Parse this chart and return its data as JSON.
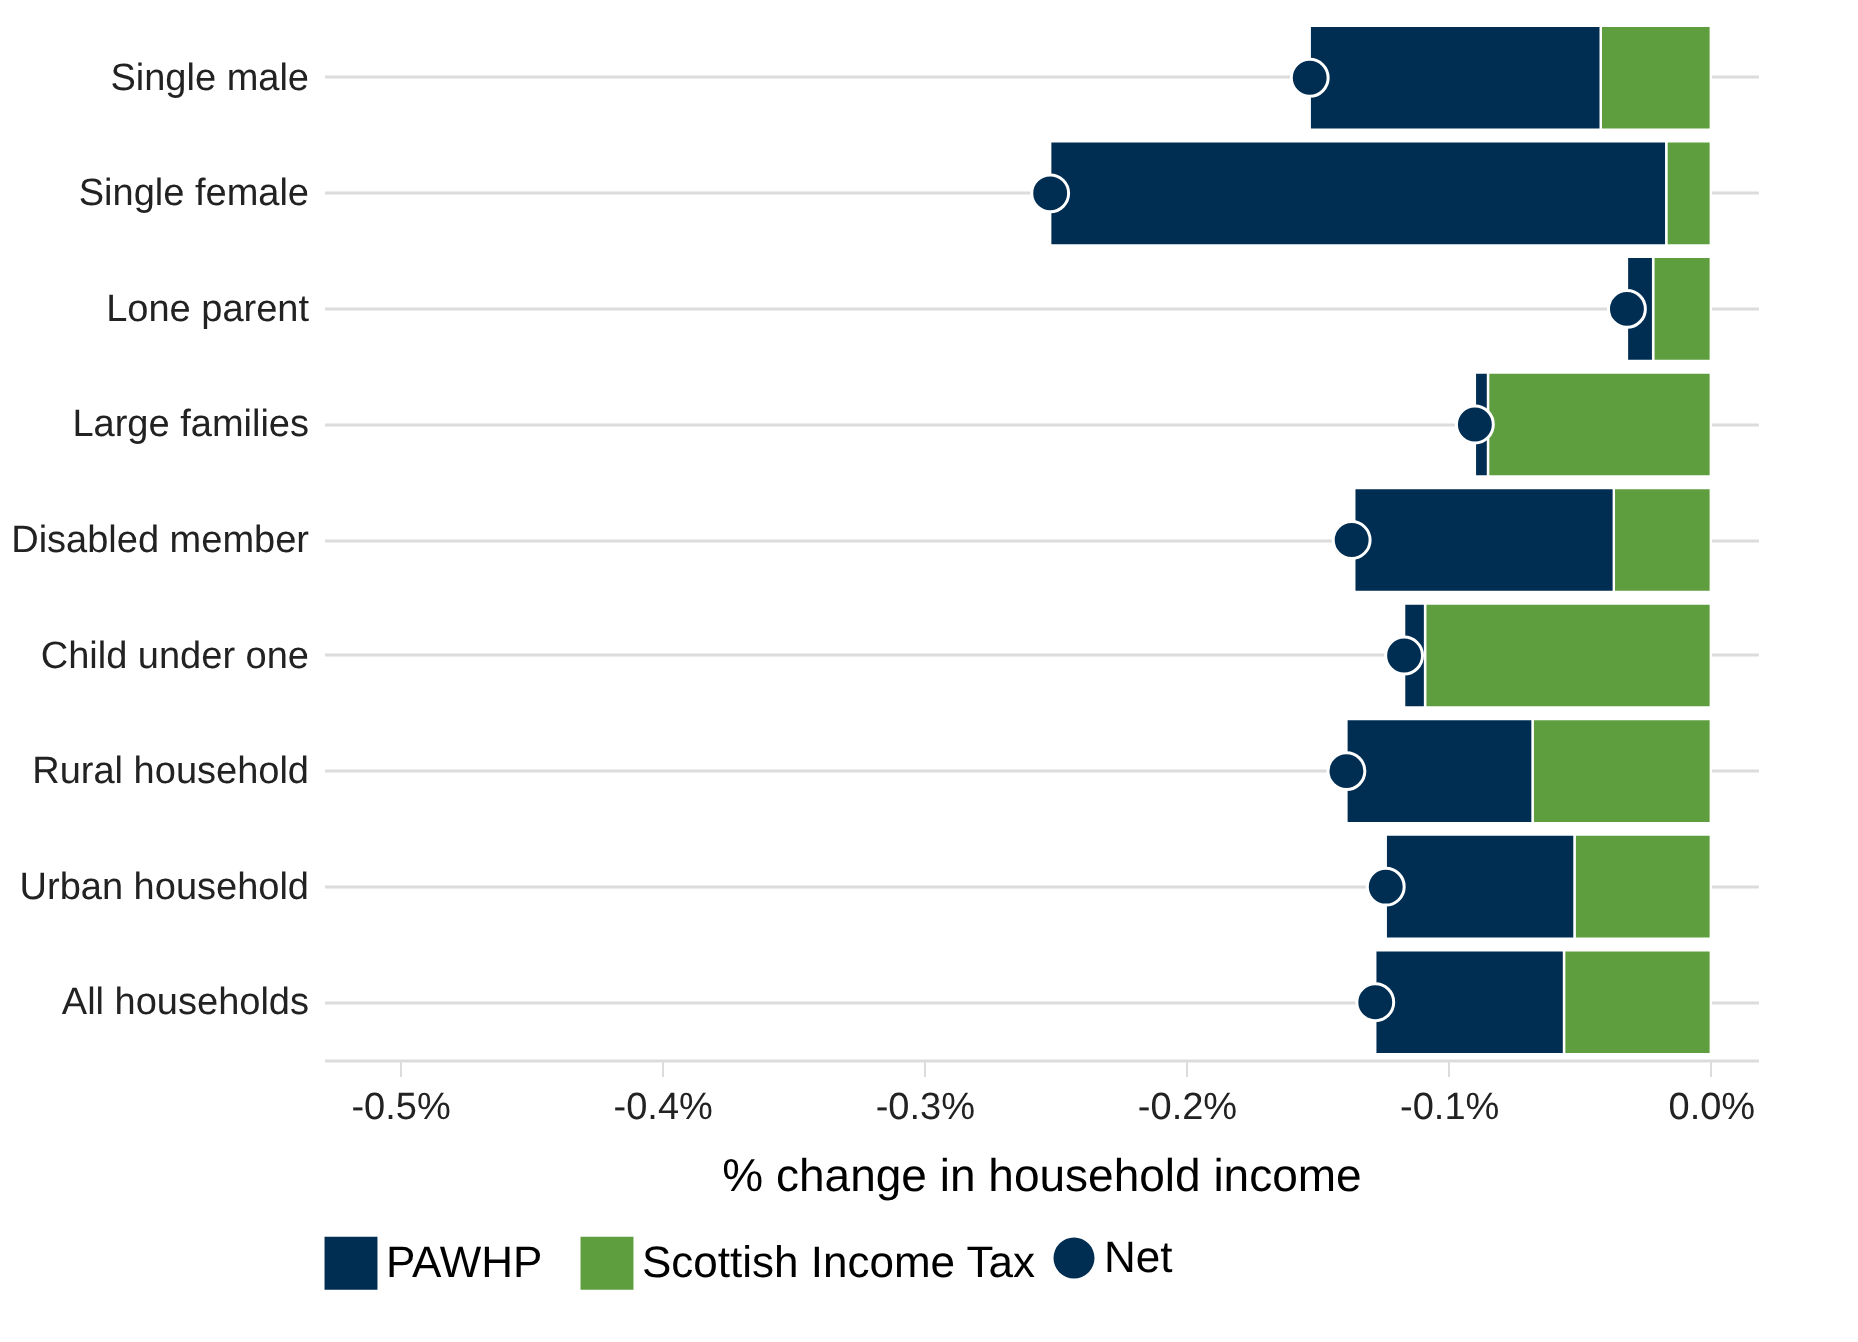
{
  "chart_data": {
    "type": "bar",
    "orientation": "horizontal",
    "stacked": true,
    "categories": [
      "Single male",
      "Single female",
      "Lone parent",
      "Large families",
      "Disabled member",
      "Child under one",
      "Rural household",
      "Urban household",
      "All households"
    ],
    "series": [
      {
        "name": "Scottish Income Tax",
        "color": "#5e9e3e",
        "values": [
          -0.042,
          -0.017,
          -0.022,
          -0.085,
          -0.037,
          -0.109,
          -0.068,
          -0.052,
          -0.056
        ]
      },
      {
        "name": "PAWHP",
        "color": "#002d52",
        "values": [
          -0.111,
          -0.235,
          -0.01,
          -0.005,
          -0.099,
          -0.008,
          -0.071,
          -0.072,
          -0.072
        ]
      },
      {
        "name": "Net",
        "type": "scatter",
        "marker": "circle",
        "color": "#002d52",
        "values": [
          -0.153,
          -0.252,
          -0.032,
          -0.09,
          -0.137,
          -0.117,
          -0.139,
          -0.124,
          -0.128
        ]
      }
    ],
    "xlabel": "% change in household income",
    "xlim": [
      -0.529,
      0.018
    ],
    "xticks": [
      {
        "value": -0.5,
        "label": "-0.5%"
      },
      {
        "value": -0.4,
        "label": "-0.4%"
      },
      {
        "value": -0.3,
        "label": "-0.3%"
      },
      {
        "value": -0.2,
        "label": "-0.2%"
      },
      {
        "value": -0.1,
        "label": "-0.1%"
      },
      {
        "value": 0,
        "label": "0.0%"
      }
    ],
    "grid": "y",
    "legend": "bottom"
  }
}
